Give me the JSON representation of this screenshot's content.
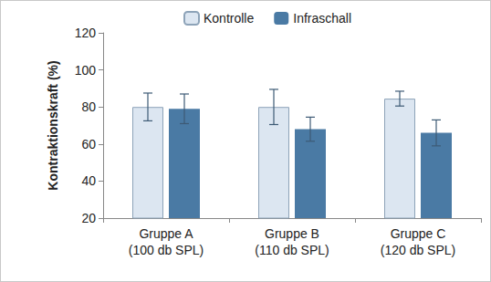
{
  "chart_data": {
    "type": "bar",
    "categories": [
      "Gruppe A\n(100 db SPL)",
      "Gruppe B\n(110 db SPL)",
      "Gruppe C\n(120 db SPL)"
    ],
    "series": [
      {
        "name": "Kontrolle",
        "color": "#dce6f1",
        "values": [
          80,
          80,
          84.5
        ],
        "errors": [
          7.5,
          9.5,
          4
        ]
      },
      {
        "name": "Infraschall",
        "color": "#4a7aa4",
        "values": [
          79,
          68,
          66
        ],
        "errors": [
          8,
          6.5,
          7
        ]
      }
    ],
    "ylabel": "Kontraktionskraft (%)",
    "ylim": [
      20,
      120
    ],
    "yticks": [
      20,
      40,
      60,
      80,
      100,
      120
    ],
    "grid": false,
    "legend": "top"
  }
}
